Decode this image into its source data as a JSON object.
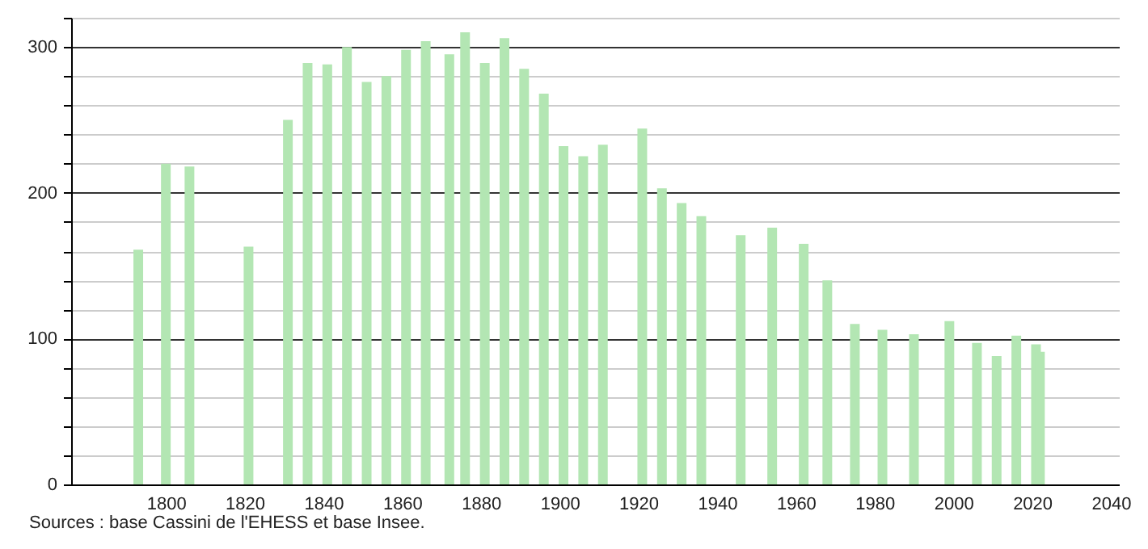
{
  "chart_data": {
    "type": "bar",
    "x": [
      1793,
      1800,
      1806,
      1821,
      1831,
      1836,
      1841,
      1846,
      1851,
      1856,
      1861,
      1866,
      1872,
      1876,
      1881,
      1886,
      1891,
      1896,
      1901,
      1906,
      1911,
      1921,
      1926,
      1931,
      1936,
      1946,
      1954,
      1962,
      1968,
      1975,
      1982,
      1990,
      1999,
      2006,
      2011,
      2016,
      2021,
      2022
    ],
    "values": [
      161,
      220,
      218,
      163,
      250,
      289,
      288,
      300,
      276,
      280,
      298,
      304,
      295,
      310,
      289,
      306,
      285,
      268,
      232,
      225,
      233,
      244,
      203,
      193,
      184,
      171,
      176,
      165,
      140,
      110,
      106,
      103,
      112,
      97,
      88,
      102,
      96,
      91
    ],
    "color": "#b3e6b3",
    "xlim": [
      1778,
      2040
    ],
    "xticks": [
      1800,
      1820,
      1840,
      1860,
      1880,
      1900,
      1920,
      1940,
      1960,
      1980,
      2000,
      2020,
      2040
    ],
    "ylim": [
      0,
      320
    ],
    "yticks": [
      0,
      {
        "value": 20,
        "label": null
      },
      {
        "value": 40,
        "label": null
      },
      {
        "value": 60,
        "label": null
      },
      {
        "value": 80,
        "label": null
      },
      100,
      {
        "value": 120,
        "label": null
      },
      {
        "value": 140,
        "label": null
      },
      {
        "value": 160,
        "label": null
      },
      {
        "value": 180,
        "label": null
      },
      200,
      {
        "value": 220,
        "label": null
      },
      {
        "value": 240,
        "label": null
      },
      {
        "value": 260,
        "label": null
      },
      {
        "value": 280,
        "label": null
      },
      300,
      {
        "value": 320,
        "label": null
      }
    ],
    "grid": "y",
    "annotations": [
      "Sources : base Cassini de l'EHESS et base Insee."
    ]
  }
}
